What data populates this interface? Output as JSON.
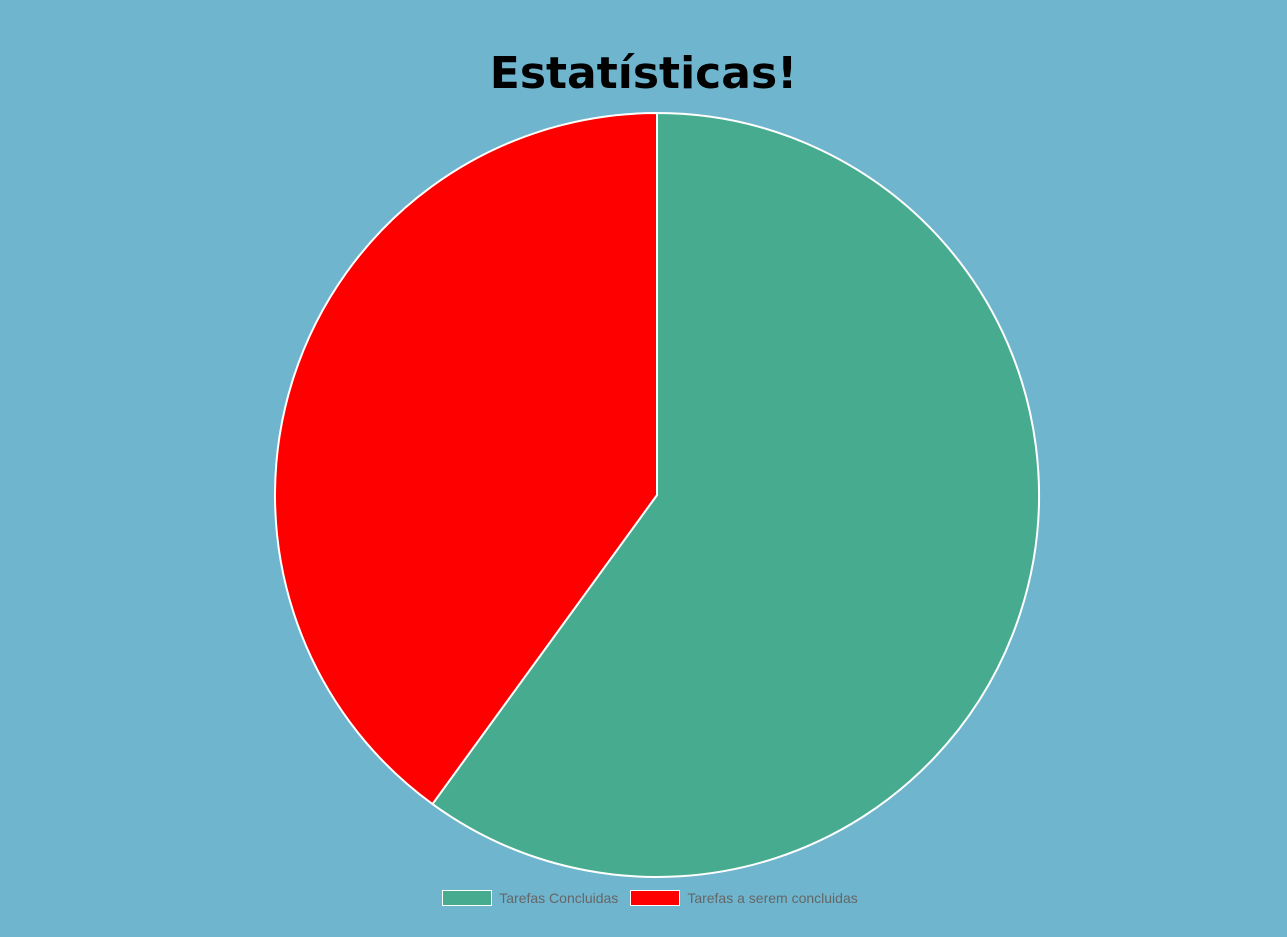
{
  "chart_data": {
    "type": "pie",
    "title": "Estatísticas!",
    "categories": [
      "Tarefas Concluidas",
      "Tarefas a serem concluidas"
    ],
    "values": [
      60,
      40
    ],
    "colors": [
      "#46ab8f",
      "#ff0000"
    ],
    "border_color": "#ffffff",
    "legend_position": "bottom"
  },
  "legend": {
    "items": [
      {
        "label": "Tarefas Concluidas",
        "color": "#46ab8f"
      },
      {
        "label": "Tarefas a serem concluidas",
        "color": "#ff0000"
      }
    ]
  },
  "colors": {
    "background": "#6fb5ce",
    "legend_text": "#666666"
  }
}
